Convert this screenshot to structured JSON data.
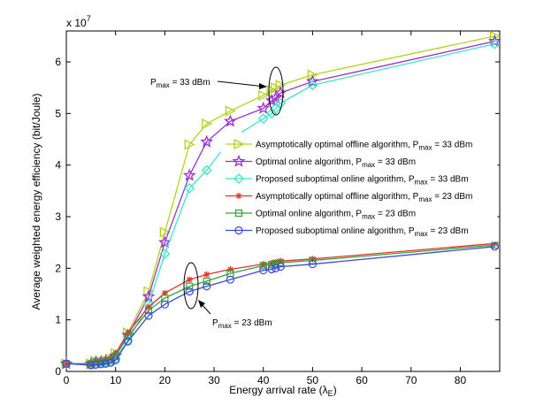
{
  "chart_data": {
    "type": "line",
    "title": "",
    "xlabel": "Energy arrival rate (λ",
    "xlabel_sub": "E",
    "xlabel_suffix": ")",
    "ylabel": "Average weighted energy efficiency (bit/Joule)",
    "y_multiplier_base": "x 10",
    "y_multiplier_exp": "7",
    "xlim": [
      0,
      88
    ],
    "ylim": [
      0,
      6.6
    ],
    "xticks": [
      0,
      10,
      20,
      30,
      40,
      50,
      60,
      70,
      80
    ],
    "yticks": [
      0,
      1,
      2,
      3,
      4,
      5,
      6
    ],
    "grid": false,
    "legend_position": "center-right",
    "x": [
      0,
      5,
      6,
      7,
      8,
      9,
      10,
      12.5,
      16.7,
      20,
      25,
      28.5,
      33.3,
      40,
      41.7,
      42.5,
      43.5,
      50,
      87
    ],
    "series": [
      {
        "name": "Asymptotically optimal offline algorithm, P",
        "sub": "max",
        "suffix": " = 33 dBm",
        "color": "#b5d21b",
        "marker": "triangle-right",
        "values": [
          0.15,
          0.15,
          0.2,
          0.2,
          0.22,
          0.25,
          0.35,
          0.75,
          1.55,
          2.7,
          4.4,
          4.8,
          5.05,
          5.35,
          5.45,
          5.5,
          5.55,
          5.75,
          6.5
        ]
      },
      {
        "name": "Optimal online algorithm, P",
        "sub": "max",
        "suffix": " = 33 dBm",
        "color": "#9b2fd0",
        "marker": "star",
        "values": [
          0.15,
          0.15,
          0.18,
          0.18,
          0.2,
          0.22,
          0.3,
          0.7,
          1.45,
          2.5,
          3.8,
          4.45,
          4.85,
          5.1,
          5.25,
          5.3,
          5.4,
          5.62,
          6.4
        ]
      },
      {
        "name": "Proposed suboptimal online algorithm, P",
        "sub": "max",
        "suffix": " = 33 dBm",
        "color": "#3ae6c4",
        "marker": "diamond",
        "values": [
          0.15,
          0.14,
          0.15,
          0.16,
          0.17,
          0.19,
          0.25,
          0.6,
          1.3,
          2.28,
          3.55,
          3.9,
          4.5,
          4.9,
          5.0,
          5.1,
          5.2,
          5.55,
          6.35
        ]
      },
      {
        "name": "Asymptotically optimal offline algorithm, P",
        "sub": "max",
        "suffix": " = 23 dBm",
        "color": "#e0342a",
        "marker": "asterisk",
        "values": [
          0.15,
          0.15,
          0.2,
          0.2,
          0.22,
          0.25,
          0.35,
          0.75,
          1.25,
          1.52,
          1.78,
          1.88,
          1.98,
          2.08,
          2.1,
          2.12,
          2.14,
          2.18,
          2.48
        ]
      },
      {
        "name": "Optimal online algorithm, P",
        "sub": "max",
        "suffix": " = 23 dBm",
        "color": "#3aa033",
        "marker": "square",
        "values": [
          0.15,
          0.15,
          0.18,
          0.18,
          0.2,
          0.22,
          0.3,
          0.68,
          1.18,
          1.42,
          1.65,
          1.75,
          1.9,
          2.05,
          2.07,
          2.09,
          2.11,
          2.15,
          2.45
        ]
      },
      {
        "name": "Proposed suboptimal online algorithm, P",
        "sub": "max",
        "suffix": " = 23 dBm",
        "color": "#3a4ad8",
        "marker": "circle",
        "values": [
          0.15,
          0.12,
          0.13,
          0.14,
          0.15,
          0.17,
          0.22,
          0.58,
          1.08,
          1.3,
          1.55,
          1.65,
          1.78,
          1.96,
          1.98,
          2.0,
          2.03,
          2.08,
          2.42
        ]
      }
    ],
    "annotations": [
      {
        "prefix": "P",
        "sub": "max",
        "suffix": " = 33 dBm"
      },
      {
        "prefix": "P",
        "sub": "max",
        "suffix": " = 23 dBm"
      }
    ]
  }
}
